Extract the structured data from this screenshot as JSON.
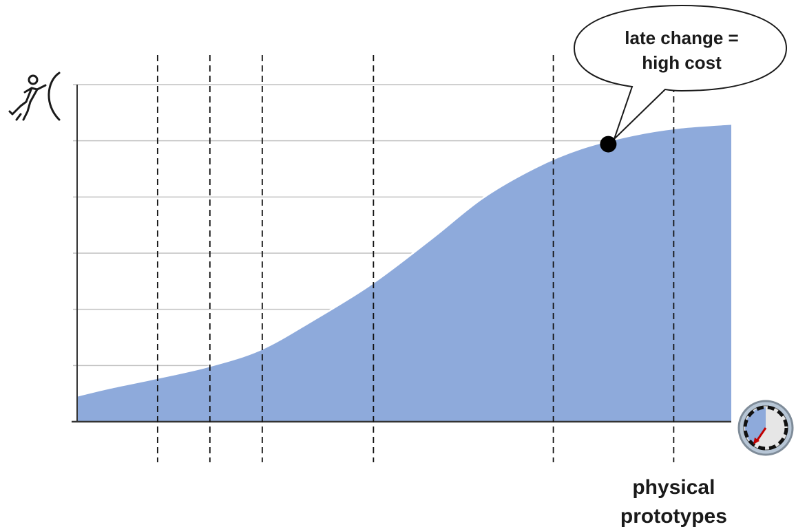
{
  "chart_data": {
    "type": "area",
    "title": "",
    "xlabel": "",
    "ylabel": "",
    "x_icon": "stopwatch-icon",
    "y_icon": "pushing-person-icon",
    "xlim": [
      0,
      100
    ],
    "ylim": [
      0,
      6
    ],
    "grid": "horizontal",
    "yticks": [
      0,
      1,
      2,
      3,
      4,
      5,
      6
    ],
    "series": [
      {
        "color": "#8eaadb",
        "x": [
          0,
          5,
          12,
          20,
          28,
          36,
          45,
          54,
          62,
          70,
          77,
          85,
          92,
          100
        ],
        "y": [
          0.46,
          0.6,
          0.77,
          0.98,
          1.28,
          1.8,
          2.45,
          3.24,
          3.98,
          4.52,
          4.86,
          5.1,
          5.23,
          5.3
        ]
      }
    ],
    "phase_lines": [
      12.3,
      20.3,
      28.3,
      45.3,
      72.8,
      91.2
    ],
    "annotations": [
      {
        "text_lines": [
          "late change =",
          "high cost"
        ],
        "x": 81.2,
        "y": 4.94
      }
    ],
    "phase_labels": [
      {
        "text_lines": [
          "physical",
          "prototypes"
        ],
        "x": 91.2
      }
    ],
    "colors": {
      "area": "#8eaadb",
      "axis": "#333333",
      "grid": "#c0c0c0",
      "marker": "#000000",
      "clock_hand": "#c00000"
    }
  }
}
